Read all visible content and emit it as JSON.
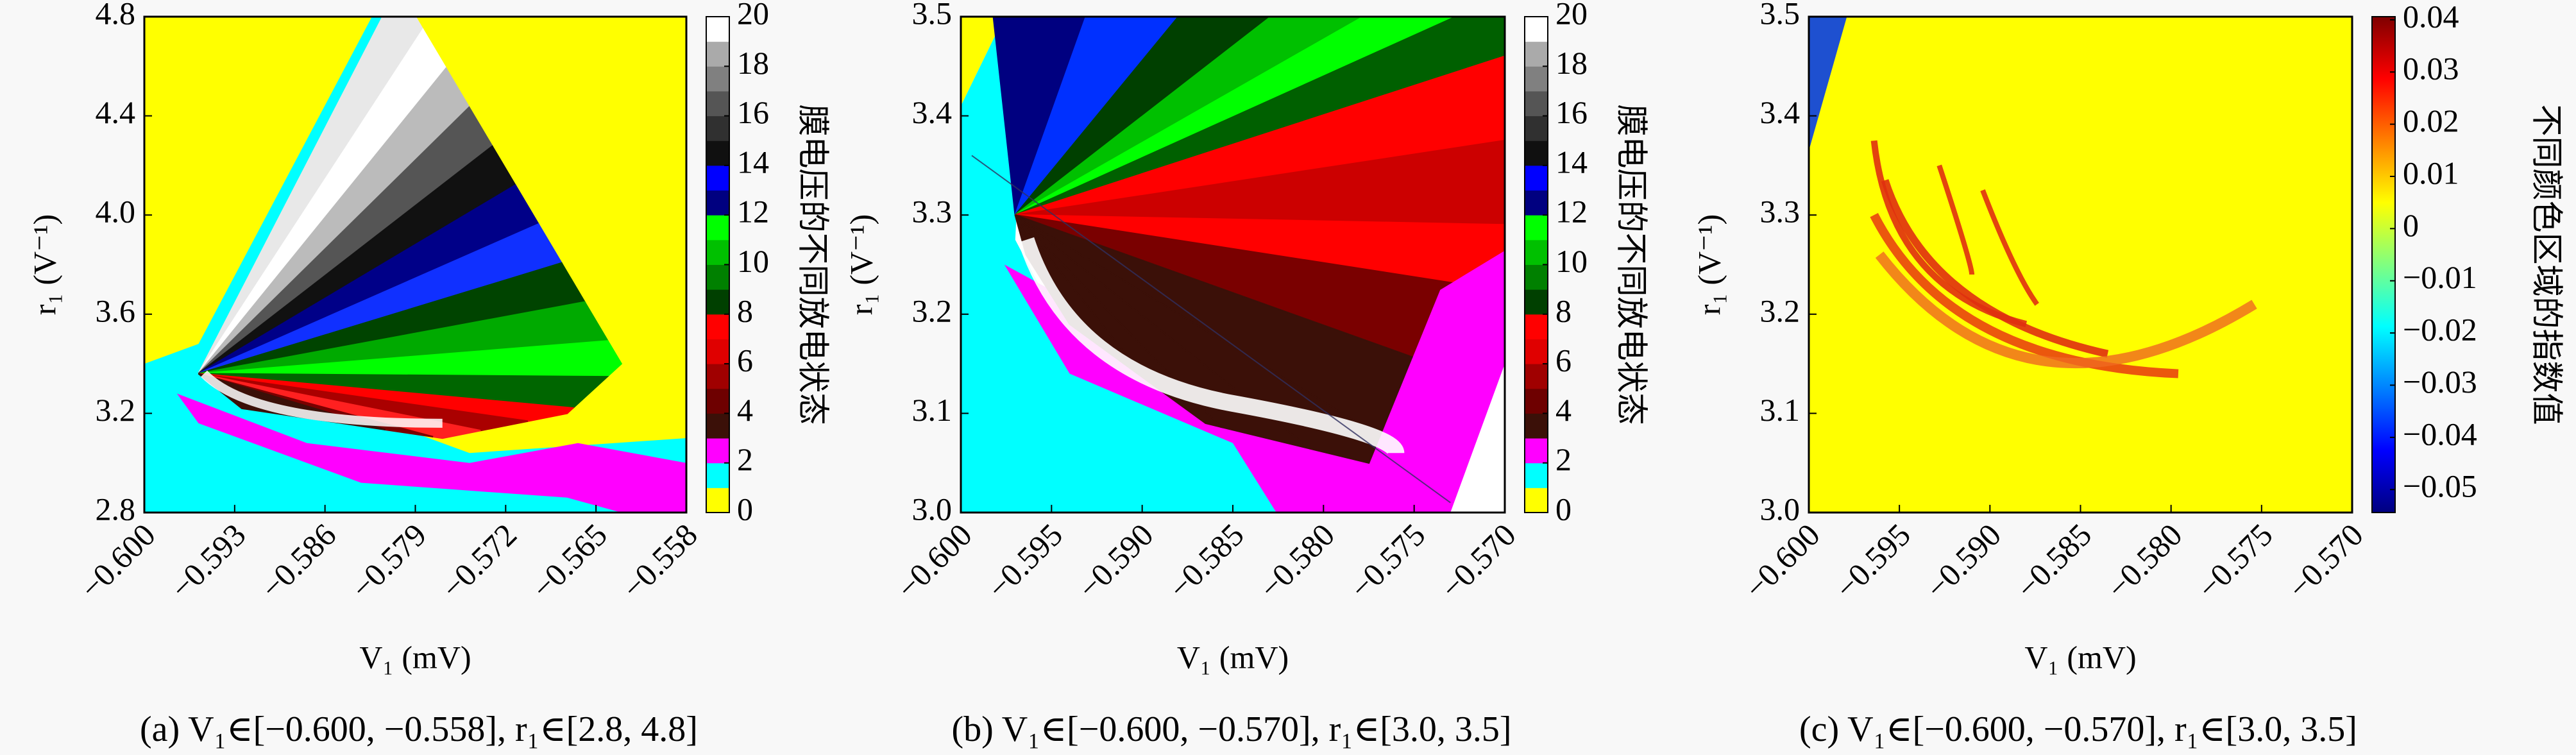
{
  "chart_data": [
    {
      "type": "heatmap",
      "xlabel": "V₁ (mV)",
      "ylabel": "r₁ (V⁻¹)",
      "xlim": [
        -0.6,
        -0.558
      ],
      "xticks": [
        {
          "value": -0.6,
          "label": "−0.600"
        },
        {
          "value": -0.593,
          "label": "−0.593"
        },
        {
          "value": -0.586,
          "label": "−0.586"
        },
        {
          "value": -0.579,
          "label": "−0.579"
        },
        {
          "value": -0.572,
          "label": "−0.572"
        },
        {
          "value": -0.565,
          "label": "−0.565"
        },
        {
          "value": -0.558,
          "label": "−0.558"
        }
      ],
      "ylim": [
        2.8,
        4.8
      ],
      "yticks": [
        2.8,
        3.2,
        3.6,
        {
          "value": 4.0,
          "label": "4.0"
        },
        4.4,
        4.8
      ],
      "colorbar": {
        "label": "膜电压的不同放电状态",
        "discrete": true,
        "lim": [
          0,
          20
        ],
        "ticks": [
          0,
          2,
          4,
          6,
          8,
          10,
          12,
          14,
          16,
          18,
          20
        ],
        "colors": [
          "#ffff00",
          "#00ffff",
          "#ff00ff",
          "#3b1008",
          "#6e0000",
          "#a00000",
          "#e00000",
          "#ff0000",
          "#004000",
          "#008000",
          "#00c000",
          "#00ff00",
          "#000080",
          "#0000ff",
          "#101010",
          "#303030",
          "#555555",
          "#808080",
          "#aaaaaa",
          "#ffffff"
        ]
      },
      "caption": "(a)  V₁∈[−0.600, −0.558], r₁∈[2.8, 4.8]"
    },
    {
      "type": "heatmap",
      "xlabel": "V₁ (mV)",
      "ylabel": "r₁ (V⁻¹)",
      "xlim": [
        -0.6,
        -0.57
      ],
      "xticks": [
        {
          "value": -0.6,
          "label": "−0.600"
        },
        {
          "value": -0.595,
          "label": "−0.595"
        },
        {
          "value": -0.59,
          "label": "−0.590"
        },
        {
          "value": -0.585,
          "label": "−0.585"
        },
        {
          "value": -0.58,
          "label": "−0.580"
        },
        {
          "value": -0.575,
          "label": "−0.575"
        },
        {
          "value": -0.57,
          "label": "−0.570"
        }
      ],
      "ylim": [
        3.0,
        3.5
      ],
      "yticks": [
        {
          "value": 3.0,
          "label": "3.0"
        },
        3.1,
        3.2,
        3.3,
        3.4,
        3.5
      ],
      "colorbar": {
        "label": "膜电压的不同放电状态",
        "discrete": true,
        "lim": [
          0,
          20
        ],
        "ticks": [
          0,
          2,
          4,
          6,
          8,
          10,
          12,
          14,
          16,
          18,
          20
        ],
        "colors": [
          "#ffff00",
          "#00ffff",
          "#ff00ff",
          "#3b1008",
          "#6e0000",
          "#a00000",
          "#e00000",
          "#ff0000",
          "#004000",
          "#008000",
          "#00c000",
          "#00ff00",
          "#000080",
          "#0000ff",
          "#101010",
          "#303030",
          "#555555",
          "#808080",
          "#aaaaaa",
          "#ffffff"
        ]
      },
      "caption": "(b)  V₁∈[−0.600, −0.570], r₁∈[3.0, 3.5]"
    },
    {
      "type": "heatmap",
      "xlabel": "V₁ (mV)",
      "ylabel": "r₁ (V⁻¹)",
      "xlim": [
        -0.6,
        -0.57
      ],
      "xticks": [
        {
          "value": -0.6,
          "label": "−0.600"
        },
        {
          "value": -0.595,
          "label": "−0.595"
        },
        {
          "value": -0.59,
          "label": "−0.590"
        },
        {
          "value": -0.585,
          "label": "−0.585"
        },
        {
          "value": -0.58,
          "label": "−0.580"
        },
        {
          "value": -0.575,
          "label": "−0.575"
        },
        {
          "value": -0.57,
          "label": "−0.570"
        }
      ],
      "ylim": [
        3.0,
        3.5
      ],
      "yticks": [
        {
          "value": 3.0,
          "label": "3.0"
        },
        3.1,
        3.2,
        3.3,
        3.4,
        3.5
      ],
      "colorbar": {
        "label": "不同颜色区域的指数值",
        "discrete": false,
        "lim": [
          -0.0544,
          0.0406
        ],
        "ticks": [
          {
            "value": -0.05,
            "label": "−0.05"
          },
          {
            "value": -0.04,
            "label": "−0.04"
          },
          {
            "value": -0.03,
            "label": "−0.03"
          },
          {
            "value": -0.02,
            "label": "−0.02"
          },
          {
            "value": -0.01,
            "label": "−0.01"
          },
          0,
          0.01,
          0.02,
          0.03,
          0.04
        ],
        "colors": [
          "#00007f",
          "#0000ff",
          "#0080ff",
          "#00ffff",
          "#80ff80",
          "#ffff00",
          "#ff8000",
          "#ff0000",
          "#7f0000"
        ]
      },
      "caption": "(c)  V₁∈[−0.600, −0.570], r₁∈[3.0, 3.5]"
    }
  ]
}
